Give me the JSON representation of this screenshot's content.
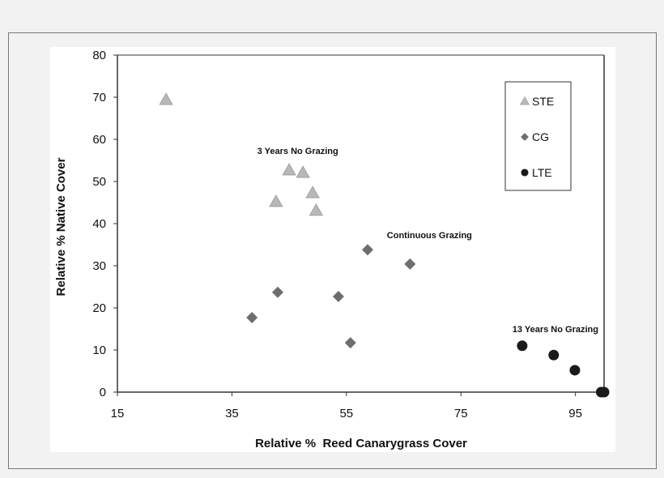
{
  "chart_data": {
    "type": "scatter",
    "xlabel": "Relative %  Reed Canarygrass Cover",
    "ylabel": "Relative % Native Cover",
    "xlim": [
      15,
      100
    ],
    "ylim": [
      0,
      80
    ],
    "xticks": [
      15,
      35,
      55,
      75,
      95
    ],
    "yticks": [
      0,
      10,
      20,
      30,
      40,
      50,
      60,
      70,
      80
    ],
    "grid": false,
    "legend_position": "top-right",
    "series": [
      {
        "name": "STE",
        "marker": "triangle",
        "color": "#b8b8b8",
        "x": [
          23.5,
          42.7,
          45.0,
          47.4,
          49.1,
          49.7
        ],
        "y": [
          69.4,
          45.2,
          52.7,
          52.1,
          47.3,
          43.1
        ]
      },
      {
        "name": "CG",
        "marker": "diamond",
        "color": "#6e6e6e",
        "x": [
          38.5,
          43.0,
          53.6,
          58.7,
          55.7,
          66.1
        ],
        "y": [
          17.7,
          23.7,
          22.7,
          33.8,
          11.7,
          30.4
        ]
      },
      {
        "name": "LTE",
        "marker": "circle",
        "color": "#1a1a1a",
        "x": [
          85.7,
          91.2,
          94.9,
          99.5,
          100
        ],
        "y": [
          11.0,
          8.8,
          5.2,
          0,
          0
        ]
      }
    ],
    "annotations": [
      {
        "text": "3 Years No Grazing",
        "x": 46.5,
        "y": 56.5
      },
      {
        "text": "Continuous Grazing",
        "x": 69.5,
        "y": 36.5
      },
      {
        "text": "13 Years No Grazing",
        "x": 91.5,
        "y": 14.2
      }
    ]
  }
}
